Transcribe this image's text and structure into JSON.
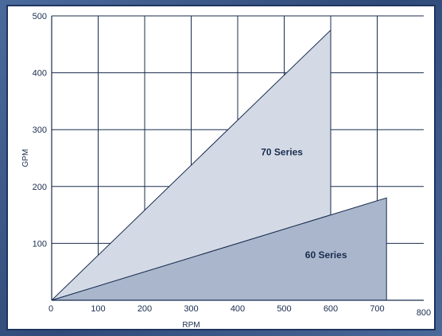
{
  "chart_data": {
    "type": "area",
    "title": "",
    "xlabel": "RPM",
    "ylabel": "GPM",
    "xlim": [
      0,
      800
    ],
    "ylim": [
      0,
      500
    ],
    "x_ticks": [
      "0",
      "100",
      "200",
      "300",
      "400",
      "500",
      "600",
      "700",
      "800"
    ],
    "y_ticks": [
      "100",
      "200",
      "300",
      "400",
      "500"
    ],
    "grid": true,
    "series": [
      {
        "name": "70 Series",
        "polygon": [
          [
            0,
            0
          ],
          [
            600,
            475
          ],
          [
            600,
            150
          ]
        ],
        "color": "#d3dae6"
      },
      {
        "name": "60 Series",
        "polygon": [
          [
            0,
            0
          ],
          [
            720,
            180
          ],
          [
            720,
            0
          ]
        ],
        "color": "#a9b6cc"
      }
    ]
  },
  "colors": {
    "background": "#3d5a8a",
    "panel_border": "#1d3560",
    "grid": "#1a2c4e",
    "text": "#1a2c4e"
  }
}
